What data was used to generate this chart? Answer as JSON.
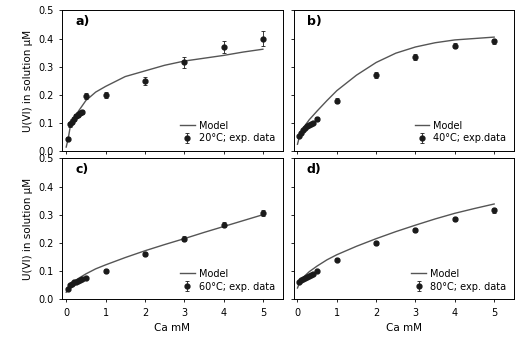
{
  "subplots": [
    {
      "label": "a)",
      "legend_line": "Model",
      "legend_dot": "20°C; exp. data",
      "exp_x": [
        0.05,
        0.1,
        0.15,
        0.2,
        0.25,
        0.3,
        0.35,
        0.4,
        0.5,
        1.0,
        2.0,
        3.0,
        4.0,
        5.0
      ],
      "exp_y": [
        0.045,
        0.095,
        0.105,
        0.115,
        0.125,
        0.13,
        0.135,
        0.14,
        0.195,
        0.2,
        0.25,
        0.315,
        0.37,
        0.4
      ],
      "exp_yerr": [
        0.005,
        0.008,
        0.008,
        0.008,
        0.008,
        0.008,
        0.008,
        0.008,
        0.01,
        0.01,
        0.015,
        0.02,
        0.022,
        0.025
      ],
      "model_x_pts": [
        0.0,
        0.05,
        0.1,
        0.15,
        0.2,
        0.25,
        0.3,
        0.4,
        0.5,
        0.75,
        1.0,
        1.5,
        2.0,
        2.5,
        3.0,
        3.5,
        4.0,
        4.5,
        5.0
      ],
      "model_y_pts": [
        0.015,
        0.045,
        0.085,
        0.105,
        0.12,
        0.13,
        0.14,
        0.16,
        0.18,
        0.21,
        0.23,
        0.265,
        0.285,
        0.305,
        0.32,
        0.33,
        0.34,
        0.352,
        0.362
      ],
      "ylim": [
        0,
        0.5
      ],
      "yticks": [
        0,
        0.1,
        0.2,
        0.3,
        0.4,
        0.5
      ]
    },
    {
      "label": "b)",
      "legend_line": "Model",
      "legend_dot": "40°C; exp.data",
      "exp_x": [
        0.05,
        0.1,
        0.15,
        0.2,
        0.25,
        0.3,
        0.35,
        0.4,
        0.5,
        1.0,
        2.0,
        3.0,
        4.0,
        5.0
      ],
      "exp_y": [
        0.055,
        0.065,
        0.075,
        0.082,
        0.088,
        0.093,
        0.098,
        0.1,
        0.115,
        0.18,
        0.27,
        0.335,
        0.375,
        0.39
      ],
      "exp_yerr": [
        0.004,
        0.004,
        0.004,
        0.004,
        0.004,
        0.004,
        0.004,
        0.004,
        0.006,
        0.008,
        0.01,
        0.01,
        0.01,
        0.01
      ],
      "model_x_pts": [
        0.0,
        0.05,
        0.1,
        0.15,
        0.2,
        0.3,
        0.5,
        0.75,
        1.0,
        1.5,
        2.0,
        2.5,
        3.0,
        3.5,
        4.0,
        4.5,
        5.0
      ],
      "model_y_pts": [
        0.025,
        0.052,
        0.068,
        0.082,
        0.093,
        0.112,
        0.143,
        0.18,
        0.215,
        0.27,
        0.315,
        0.348,
        0.37,
        0.385,
        0.395,
        0.4,
        0.405
      ],
      "ylim": [
        0,
        0.5
      ],
      "yticks": [
        0,
        0.1,
        0.2,
        0.3,
        0.4,
        0.5
      ]
    },
    {
      "label": "c)",
      "legend_line": "Model",
      "legend_dot": "60°C; exp. data",
      "exp_x": [
        0.05,
        0.1,
        0.15,
        0.2,
        0.25,
        0.3,
        0.35,
        0.4,
        0.5,
        1.0,
        2.0,
        3.0,
        4.0,
        5.0
      ],
      "exp_y": [
        0.038,
        0.05,
        0.055,
        0.06,
        0.063,
        0.065,
        0.068,
        0.072,
        0.075,
        0.1,
        0.16,
        0.215,
        0.265,
        0.305
      ],
      "exp_yerr": [
        0.003,
        0.003,
        0.003,
        0.003,
        0.003,
        0.003,
        0.003,
        0.003,
        0.004,
        0.006,
        0.008,
        0.008,
        0.008,
        0.01
      ],
      "model_x_pts": [
        0.0,
        0.05,
        0.1,
        0.2,
        0.3,
        0.5,
        0.75,
        1.0,
        1.5,
        2.0,
        2.5,
        3.0,
        3.5,
        4.0,
        4.5,
        5.0
      ],
      "model_y_pts": [
        0.025,
        0.038,
        0.05,
        0.063,
        0.073,
        0.09,
        0.108,
        0.122,
        0.148,
        0.172,
        0.194,
        0.215,
        0.237,
        0.258,
        0.279,
        0.3
      ],
      "ylim": [
        0,
        0.5
      ],
      "yticks": [
        0,
        0.1,
        0.2,
        0.3,
        0.4,
        0.5
      ]
    },
    {
      "label": "d)",
      "legend_line": "Model",
      "legend_dot": "80°C; exp. data",
      "exp_x": [
        0.05,
        0.1,
        0.15,
        0.2,
        0.25,
        0.3,
        0.35,
        0.4,
        0.5,
        1.0,
        2.0,
        3.0,
        4.0,
        5.0
      ],
      "exp_y": [
        0.06,
        0.068,
        0.072,
        0.076,
        0.08,
        0.083,
        0.087,
        0.09,
        0.1,
        0.14,
        0.2,
        0.245,
        0.285,
        0.315
      ],
      "exp_yerr": [
        0.003,
        0.003,
        0.003,
        0.003,
        0.003,
        0.003,
        0.003,
        0.003,
        0.004,
        0.005,
        0.006,
        0.007,
        0.007,
        0.008
      ],
      "model_x_pts": [
        0.0,
        0.05,
        0.1,
        0.2,
        0.3,
        0.5,
        0.75,
        1.0,
        1.5,
        2.0,
        2.5,
        3.0,
        3.5,
        4.0,
        4.5,
        5.0
      ],
      "model_y_pts": [
        0.04,
        0.058,
        0.07,
        0.085,
        0.098,
        0.118,
        0.14,
        0.158,
        0.188,
        0.215,
        0.24,
        0.263,
        0.285,
        0.305,
        0.322,
        0.338
      ],
      "ylim": [
        0,
        0.5
      ],
      "yticks": [
        0,
        0.1,
        0.2,
        0.3,
        0.4,
        0.5
      ]
    }
  ],
  "xlabel": "Ca mM",
  "ylabel": "U(VI) in solution μM",
  "xlim": [
    -0.1,
    5.5
  ],
  "xticks": [
    0,
    1,
    2,
    3,
    4,
    5
  ],
  "dot_color": "#1a1a1a",
  "line_color": "#555555",
  "line_width": 1.0,
  "background_color": "#ffffff",
  "fontsize_tick": 7,
  "fontsize_label": 7.5,
  "fontsize_legend": 7,
  "fontsize_sublabel": 9
}
